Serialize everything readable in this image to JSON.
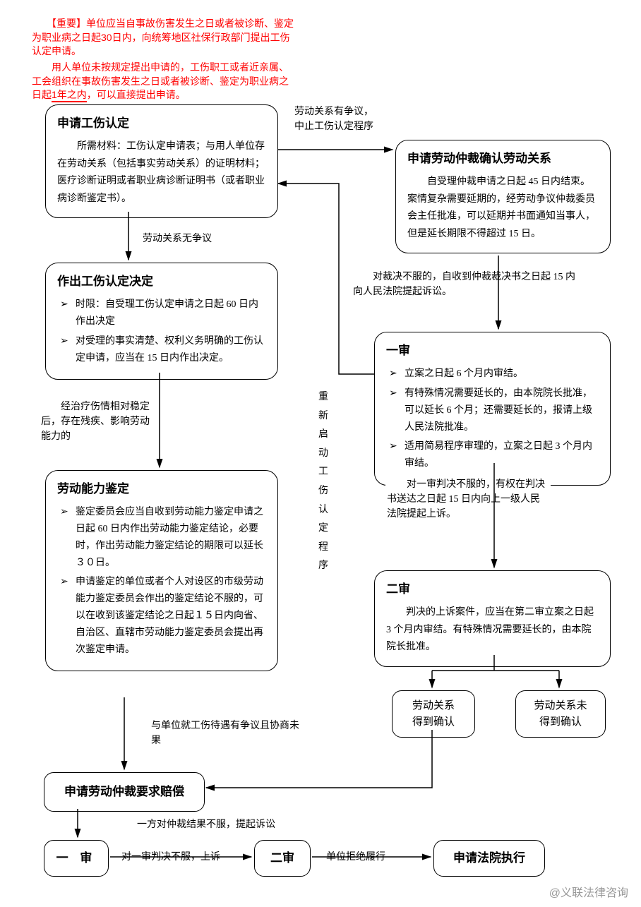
{
  "warning": {
    "p1": "　　【重要】单位应当自事故伤害发生之日或者被诊断、鉴定为职业病之日起30日内，向统筹地区社保行政部门提出工伤认定申请。",
    "p2_pre": "　　用人单位未按规定提出申请的，工伤职工或者近亲属、工会组织在事故伤害发生之日或者被诊断、鉴定为职业病之日起",
    "p2_underline": "1年之内",
    "p2_post": "，可以直接提出申请。"
  },
  "box_apply": {
    "title": "申请工伤认定",
    "body": "所需材料：工伤认定申请表；与用人单位存在劳动关系（包括事实劳动关系）的证明材料；医疗诊断证明或者职业病诊断证明书（或者职业病诊断鉴定书）。"
  },
  "box_arb_confirm": {
    "title": "申请劳动仲裁确认劳动关系",
    "body": "自受理仲裁申请之日起 45 日内结束。案情复杂需要延期的，经劳动争议仲裁委员会主任批准，可以延期并书面通知当事人，但是延长期限不得超过 15 日。"
  },
  "box_decision": {
    "title": "作出工伤认定决定",
    "b1": "时限：自受理工伤认定申请之日起 60 日内作出决定",
    "b2": "对受理的事实清楚、权利义务明确的工伤认定申请，应当在 15 日内作出决定。"
  },
  "box_trial1": {
    "title": "一审",
    "b1": "立案之日起 6 个月内审结。",
    "b2": "有特殊情况需要延长的，由本院院长批准，可以延长 6 个月；还需要延长的，报请上级人民法院批准。",
    "b3": "适用简易程序审理的，立案之日起 3 个月内审结。"
  },
  "box_ability": {
    "title": "劳动能力鉴定",
    "b1": "鉴定委员会应当自收到劳动能力鉴定申请之日起 60 日内作出劳动能力鉴定结论，必要时，作出劳动能力鉴定结论的期限可以延长３０日。",
    "b2": "申请鉴定的单位或者个人对设区的市级劳动能力鉴定委员会作出的鉴定结论不服的，可以在收到该鉴定结论之日起１５日内向省、自治区、直辖市劳动能力鉴定委员会提出再次鉴定申请。"
  },
  "box_trial2": {
    "title": "二审",
    "body": "判决的上诉案件，应当在第二审立案之日起 3 个月内审结。有特殊情况需要延长的，由本院院长批准。"
  },
  "labels": {
    "dispute": "劳动关系有争议，\n中止工伤认定程序",
    "no_dispute": "劳动关系无争议",
    "to_sue": "　　对裁决不服的，自收到仲裁裁决书之日起 15 内向人民法院提起诉讼。",
    "stable": "　　经治疗伤情相对稳定后，存在残疾、影响劳动能力的",
    "restart": "重新启动工伤认定程序",
    "appeal": "　　对一审判决不服的，有权在判决书送达之日起 15 日内向上一级人民法院提起上诉。",
    "compensate_dispute": "与单位就工伤待遇有争议且协商未果",
    "sue_again": "一方对仲裁结果不服，提起诉讼",
    "appeal2": "对一审判决不服，上诉",
    "refuse": "单位拒绝履行"
  },
  "outcomes": {
    "confirmed": "劳动关系\n得到确认",
    "not_confirmed": "劳动关系未\n得到确认"
  },
  "bottom_boxes": {
    "arb_compensate": "申请劳动仲裁要求赔偿",
    "trial1": "一 审",
    "trial2": "二审",
    "enforce": "申请法院执行"
  },
  "watermark": "@义联法律咨询"
}
